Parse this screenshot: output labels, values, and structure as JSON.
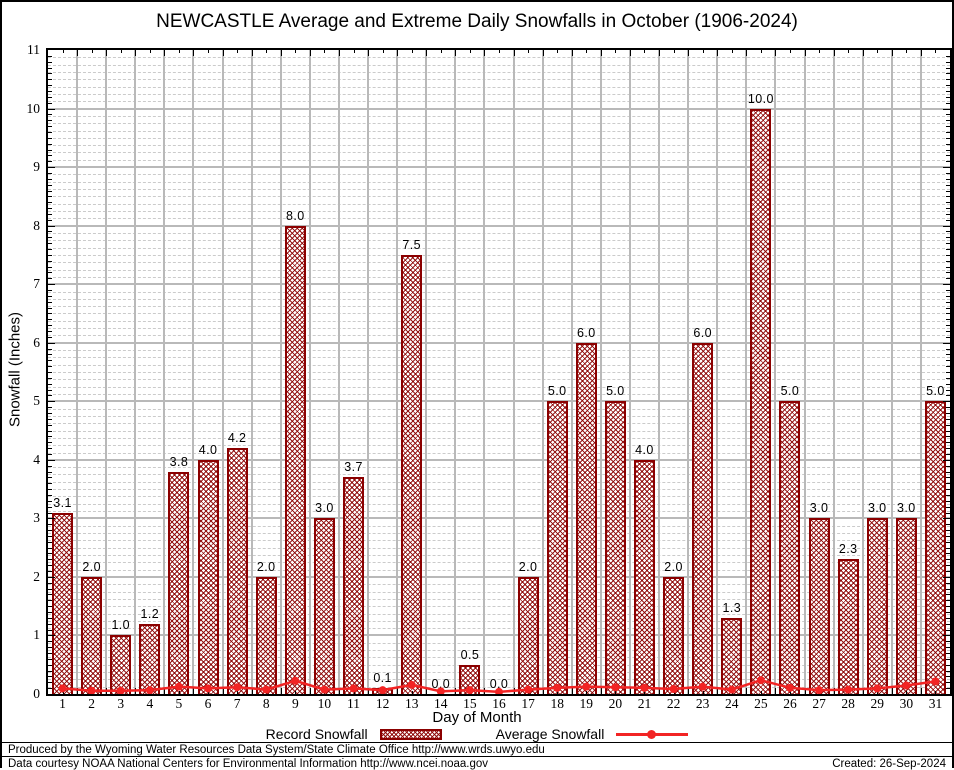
{
  "title": "NEWCASTLE Average and Extreme Daily Snowfalls in October (1906-2024)",
  "chart_data": {
    "type": "bar",
    "title": "NEWCASTLE Average and Extreme Daily Snowfalls in October (1906-2024)",
    "xlabel": "Day of Month",
    "ylabel": "Snowfall (Inches)",
    "ylim": [
      0,
      11
    ],
    "ytick_step": 1,
    "grid": true,
    "legend_position": "bottom",
    "categories": [
      "1",
      "2",
      "3",
      "4",
      "5",
      "6",
      "7",
      "8",
      "9",
      "10",
      "11",
      "12",
      "13",
      "14",
      "15",
      "16",
      "17",
      "18",
      "19",
      "20",
      "21",
      "22",
      "23",
      "24",
      "25",
      "26",
      "27",
      "28",
      "29",
      "30",
      "31"
    ],
    "series": [
      {
        "name": "Record Snowfall",
        "type": "bar",
        "values": [
          3.1,
          2.0,
          1.0,
          1.2,
          3.8,
          4.0,
          4.2,
          2.0,
          8.0,
          3.0,
          3.7,
          0.1,
          7.5,
          0.0,
          0.5,
          0.0,
          2.0,
          5.0,
          6.0,
          5.0,
          4.0,
          2.0,
          6.0,
          1.3,
          10.0,
          5.0,
          3.0,
          2.3,
          3.0,
          3.0,
          5.0
        ],
        "labels": [
          "3.1",
          "2.0",
          "1.0",
          "1.2",
          "3.8",
          "4.0",
          "4.2",
          "2.0",
          "8.0",
          "3.0",
          "3.7",
          "0.1",
          "7.5",
          "0.0",
          "0.5",
          "0.0",
          "2.0",
          "5.0",
          "6.0",
          "5.0",
          "4.0",
          "2.0",
          "6.0",
          "1.3",
          "10.0",
          "5.0",
          "3.0",
          "2.3",
          "3.0",
          "3.0",
          "5.0"
        ]
      },
      {
        "name": "Average Snowfall",
        "type": "line",
        "values": [
          0.07,
          0.03,
          0.03,
          0.04,
          0.1,
          0.07,
          0.09,
          0.05,
          0.2,
          0.05,
          0.07,
          0.04,
          0.13,
          0.02,
          0.04,
          0.01,
          0.05,
          0.08,
          0.1,
          0.09,
          0.08,
          0.06,
          0.1,
          0.05,
          0.21,
          0.08,
          0.04,
          0.05,
          0.07,
          0.12,
          0.19
        ]
      }
    ],
    "colors": {
      "bar_edge": "#8b0000",
      "bar_hatch": "#8b0000",
      "average_line": "#f22424",
      "major_grid": "#b9b9b9",
      "minor_grid": "#cbcbcb"
    }
  },
  "legend": {
    "record_label": "Record Snowfall",
    "average_label": "Average Snowfall"
  },
  "footer": {
    "line1": "Produced by the Wyoming Water Resources Data System/State Climate Office http://www.wrds.uwyo.edu",
    "line2": "Data courtesy NOAA National Centers for Environmental Information http://www.ncei.noaa.gov",
    "created": "Created: 26-Sep-2024"
  }
}
